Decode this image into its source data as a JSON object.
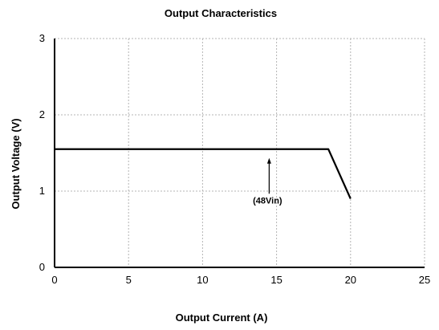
{
  "chart_data": {
    "type": "line",
    "title": "Output Characteristics",
    "xlabel": "Output Current (A)",
    "ylabel": "Output Voltage (V)",
    "xlim": [
      0,
      25
    ],
    "ylim": [
      0,
      3
    ],
    "x_ticks": [
      0,
      5,
      10,
      15,
      20,
      25
    ],
    "y_ticks": [
      0,
      1,
      2,
      3
    ],
    "grid": true,
    "series": [
      {
        "x": [
          0,
          18.5,
          20
        ],
        "y": [
          1.55,
          1.55,
          0.9
        ]
      }
    ],
    "annotations": [
      {
        "text": "(48Vin)",
        "x": 14.5,
        "y": 1.45
      }
    ]
  }
}
